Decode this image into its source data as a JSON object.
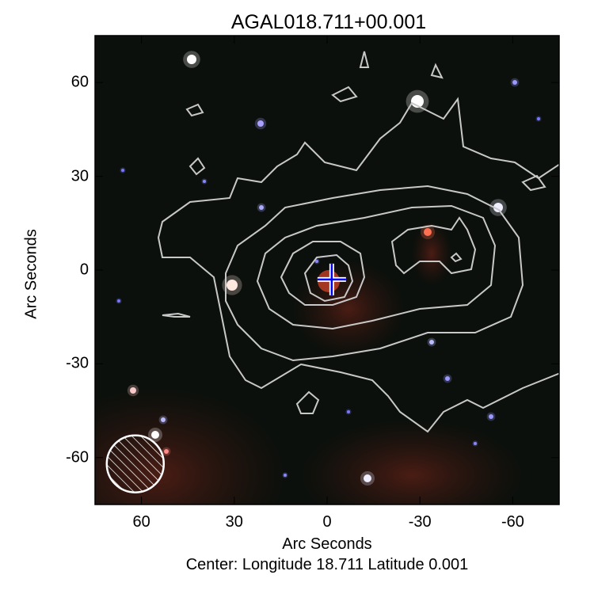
{
  "chart_data": {
    "type": "image",
    "title": "AGAL018.711+00.001",
    "xlabel": "Arc Seconds",
    "ylabel": "Arc Seconds",
    "caption": "Center:  Longitude 18.711 Latitude 0.001",
    "xlim": [
      75,
      -75
    ],
    "ylim": [
      -75,
      75
    ],
    "xticks": [
      "60",
      "30",
      "0",
      "-30",
      "-60"
    ],
    "xtick_values": [
      60,
      30,
      0,
      -30,
      -60
    ],
    "yticks": [
      "60",
      "30",
      "0",
      "-30",
      "-60"
    ],
    "ytick_values": [
      60,
      30,
      0,
      -30,
      -60
    ],
    "marker": {
      "type": "cross",
      "x": -1.5,
      "y": -3,
      "color": "#0000ff"
    },
    "contour_color": "#c8c8c8",
    "beam": {
      "x": 62,
      "y": -62
    }
  }
}
